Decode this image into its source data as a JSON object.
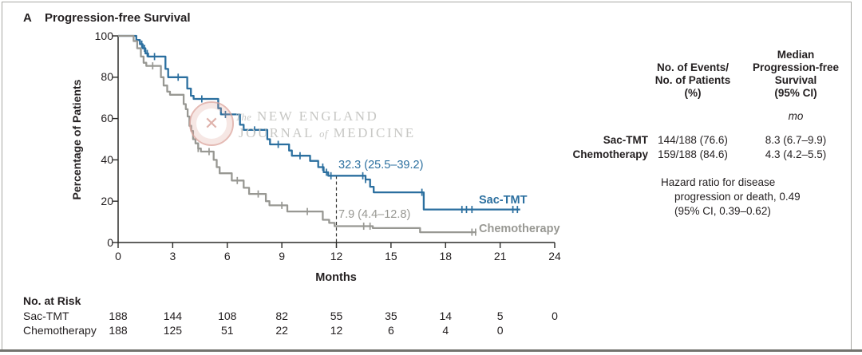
{
  "figure": {
    "panel_letter": "A",
    "title": "Progression-free Survival"
  },
  "colors": {
    "sac_tmt": "#2b6f9f",
    "chemotherapy": "#989893",
    "axis": "#2b2b29",
    "text": "#231f20",
    "watermark_text": "#c7c7c4",
    "watermark_seal": "#dca49b"
  },
  "axes": {
    "y_label": "Percentage of Patients",
    "x_label": "Months",
    "yticks": [
      0,
      20,
      40,
      60,
      80,
      100
    ],
    "xticks": [
      0,
      3,
      6,
      9,
      12,
      15,
      18,
      21,
      24
    ]
  },
  "watermark": {
    "the": "The",
    "line1": "NEW ENGLAND",
    "journal": "JOURNAL",
    "of": "of",
    "medicine": "MEDICINE",
    "seal_glyph": "✕"
  },
  "annotations": {
    "sac_tmt_12mo": "32.3 (25.5–39.2)",
    "chemo_12mo": "7.9 (4.4–12.8)",
    "sac_tmt_label": "Sac-TMT",
    "chemo_label": "Chemotherapy"
  },
  "summary_table": {
    "col1_header_lines": [
      "No. of Events/",
      "No. of Patients",
      "(%)"
    ],
    "col2_header_lines": [
      "Median",
      "Progression-free",
      "Survival",
      "(95% CI)"
    ],
    "unit": "mo",
    "rows": [
      {
        "label": "Sac-TMT",
        "events": "144/188 (76.6)",
        "median": "8.3 (6.7–9.9)"
      },
      {
        "label": "Chemotherapy",
        "events": "159/188 (84.6)",
        "median": "4.3 (4.2–5.5)"
      }
    ],
    "hazard_lines": [
      "Hazard ratio for disease",
      "progression or death, 0.49",
      "(95% CI, 0.39–0.62)"
    ]
  },
  "at_risk": {
    "title": "No. at Risk",
    "months": [
      0,
      3,
      6,
      9,
      12,
      15,
      18,
      21,
      24
    ],
    "rows": [
      {
        "label": "Sac-TMT",
        "counts": [
          "188",
          "144",
          "108",
          "82",
          "55",
          "35",
          "14",
          "5",
          "0"
        ]
      },
      {
        "label": "Chemotherapy",
        "counts": [
          "188",
          "125",
          "51",
          "22",
          "12",
          "6",
          "4",
          "0",
          ""
        ]
      }
    ]
  },
  "chart_data": {
    "type": "line",
    "subtype": "kaplan-meier-step",
    "title": "Progression-free Survival",
    "xlabel": "Months",
    "ylabel": "Percentage of Patients",
    "xlim": [
      0,
      24
    ],
    "ylim": [
      0,
      100
    ],
    "xticks": [
      0,
      3,
      6,
      9,
      12,
      15,
      18,
      21,
      24
    ],
    "yticks": [
      0,
      20,
      40,
      60,
      80,
      100
    ],
    "grid": false,
    "legend_position": "inline-right",
    "dashed_reference": {
      "x": 12,
      "y_top": 32.3
    },
    "series": [
      {
        "name": "Sac-TMT",
        "color": "#2b6f9f",
        "median_months": 8.3,
        "rate_at_12mo": 32.3,
        "steps": [
          [
            0,
            100
          ],
          [
            1.0,
            98
          ],
          [
            1.2,
            96
          ],
          [
            1.35,
            94
          ],
          [
            1.5,
            91.5
          ],
          [
            1.65,
            90
          ],
          [
            2.6,
            84
          ],
          [
            2.75,
            80
          ],
          [
            3.8,
            74.5
          ],
          [
            4.0,
            71
          ],
          [
            4.15,
            69.5
          ],
          [
            5.5,
            65
          ],
          [
            5.65,
            62
          ],
          [
            6.7,
            57
          ],
          [
            6.9,
            54.5
          ],
          [
            8.2,
            50
          ],
          [
            8.35,
            47.5
          ],
          [
            9.4,
            44.5
          ],
          [
            9.55,
            42
          ],
          [
            10.55,
            39.5
          ],
          [
            11.0,
            36.5
          ],
          [
            11.3,
            34
          ],
          [
            11.55,
            32.3
          ],
          [
            13.6,
            30.5
          ],
          [
            13.85,
            27
          ],
          [
            14.05,
            24.3
          ],
          [
            16.8,
            16
          ]
        ],
        "end_month": 22.1,
        "censors": [
          1.3,
          1.45,
          1.6,
          2.0,
          3.3,
          4.6,
          5.9,
          7.5,
          8.8,
          10.0,
          11.25,
          11.45,
          11.7,
          13.45,
          13.6,
          16.7,
          18.9,
          19.15,
          19.45,
          21.7,
          21.95
        ]
      },
      {
        "name": "Chemotherapy",
        "color": "#989893",
        "median_months": 4.3,
        "rate_at_12mo": 7.9,
        "steps": [
          [
            0,
            100
          ],
          [
            0.85,
            97.5
          ],
          [
            1.05,
            94
          ],
          [
            1.25,
            90
          ],
          [
            1.4,
            87
          ],
          [
            1.55,
            85.5
          ],
          [
            2.35,
            80
          ],
          [
            2.5,
            76
          ],
          [
            2.7,
            73
          ],
          [
            2.85,
            71.5
          ],
          [
            3.6,
            67
          ],
          [
            3.72,
            64.5
          ],
          [
            3.82,
            61
          ],
          [
            3.92,
            56.5
          ],
          [
            4.02,
            54
          ],
          [
            4.12,
            50
          ],
          [
            4.25,
            48
          ],
          [
            4.4,
            45.5
          ],
          [
            4.55,
            44
          ],
          [
            5.25,
            40
          ],
          [
            5.42,
            36.5
          ],
          [
            5.58,
            33.5
          ],
          [
            6.25,
            30
          ],
          [
            6.9,
            26.5
          ],
          [
            7.2,
            23.5
          ],
          [
            8.12,
            20
          ],
          [
            8.32,
            18
          ],
          [
            9.3,
            15
          ],
          [
            11.25,
            11
          ],
          [
            11.6,
            9.5
          ],
          [
            11.9,
            7.9
          ],
          [
            14.0,
            7
          ],
          [
            16.6,
            5
          ]
        ],
        "end_month": 19.7,
        "censors": [
          1.9,
          4.4,
          5.0,
          6.55,
          7.7,
          9.0,
          10.4,
          13.5,
          13.85,
          19.45,
          19.65
        ]
      }
    ]
  }
}
